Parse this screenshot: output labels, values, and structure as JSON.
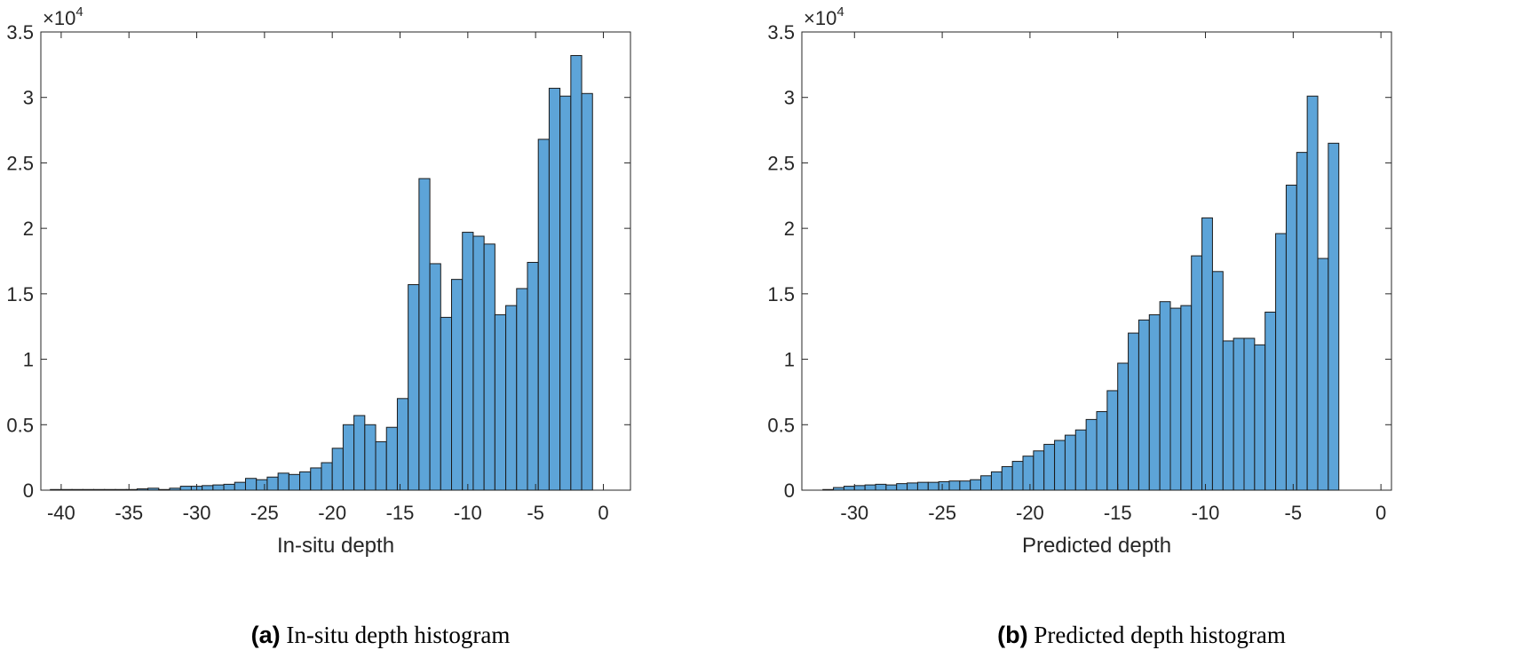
{
  "chart_data": [
    {
      "type": "bar",
      "subplot_label": "(a)",
      "caption": "In-situ depth histogram",
      "xlabel": "In-situ depth",
      "ylabel": "",
      "y_exponent_label": "×10",
      "y_exponent_power": "4",
      "xlim": [
        -41.5,
        2
      ],
      "ylim": [
        0,
        35000
      ],
      "xticks": [
        -40,
        -35,
        -30,
        -25,
        -20,
        -15,
        -10,
        -5,
        0
      ],
      "xtick_labels": [
        "-40",
        "-35",
        "-30",
        "-25",
        "-20",
        "-15",
        "-10",
        "-5",
        "0"
      ],
      "yticks": [
        0,
        5000,
        10000,
        15000,
        20000,
        25000,
        30000,
        35000
      ],
      "ytick_labels": [
        "0",
        "0.5",
        "1",
        "1.5",
        "2",
        "2.5",
        "3",
        "3.5"
      ],
      "bin_start": -40.8,
      "bin_width": 0.8,
      "values": [
        50,
        50,
        50,
        50,
        50,
        50,
        50,
        50,
        100,
        150,
        50,
        150,
        300,
        300,
        350,
        400,
        450,
        600,
        900,
        800,
        1000,
        1300,
        1200,
        1400,
        1700,
        2100,
        3200,
        5000,
        5700,
        5000,
        3700,
        4800,
        7000,
        15700,
        23800,
        17300,
        13200,
        16100,
        19700,
        19400,
        18800,
        13400,
        14100,
        15400,
        17400,
        26800,
        30700,
        30100,
        33200,
        30300
      ],
      "bar_color": "#5DA4D8",
      "grid": false
    },
    {
      "type": "bar",
      "subplot_label": "(b)",
      "caption": "Predicted depth histogram",
      "xlabel": "Predicted depth",
      "ylabel": "",
      "y_exponent_label": "×10",
      "y_exponent_power": "4",
      "xlim": [
        -33,
        0.6
      ],
      "ylim": [
        0,
        35000
      ],
      "xticks": [
        -30,
        -25,
        -20,
        -15,
        -10,
        -5,
        0
      ],
      "xtick_labels": [
        "-30",
        "-25",
        "-20",
        "-15",
        "-10",
        "-5",
        "0"
      ],
      "yticks": [
        0,
        5000,
        10000,
        15000,
        20000,
        25000,
        30000,
        35000
      ],
      "ytick_labels": [
        "0",
        "0.5",
        "1",
        "1.5",
        "2",
        "2.5",
        "3",
        "3.5"
      ],
      "bin_start": -31.8,
      "bin_width": 0.6,
      "values": [
        50,
        200,
        300,
        350,
        400,
        450,
        400,
        500,
        550,
        600,
        600,
        650,
        700,
        700,
        800,
        1100,
        1400,
        1800,
        2200,
        2600,
        3000,
        3500,
        3800,
        4200,
        4600,
        5400,
        6000,
        7600,
        9700,
        12000,
        13000,
        13400,
        14400,
        13900,
        14100,
        17900,
        20800,
        16700,
        11400,
        11600,
        11600,
        11100,
        13600,
        19600,
        23300,
        25800,
        30100,
        17700,
        26500
      ],
      "bar_color": "#5DA4D8",
      "grid": false
    }
  ]
}
